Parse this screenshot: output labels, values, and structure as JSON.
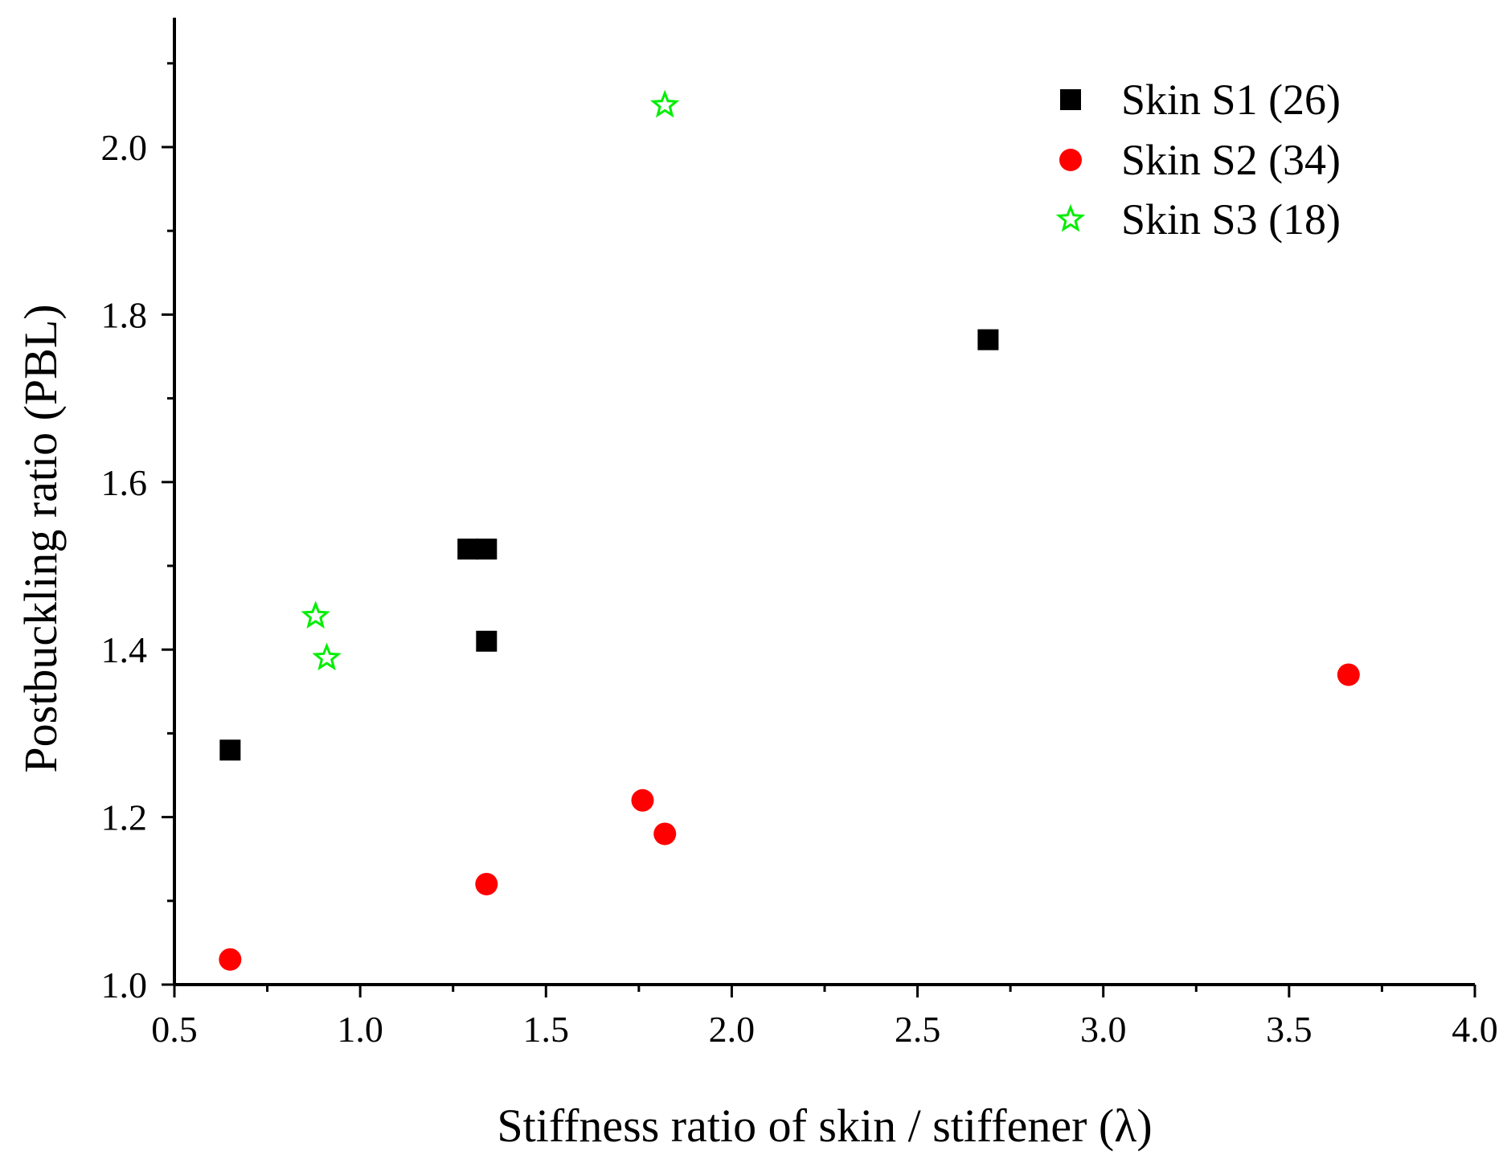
{
  "chart_data": {
    "type": "scatter",
    "title": "",
    "xlabel": "Stiffness ratio of skin / stiffener (λ)",
    "ylabel": "Postbuckling ratio (PBL)",
    "xlim": [
      0.5,
      4.0
    ],
    "ylim": [
      1.0,
      2.15
    ],
    "xticks": [
      0.5,
      1.0,
      1.5,
      2.0,
      2.5,
      3.0,
      3.5,
      4.0
    ],
    "xtick_labels": [
      "0.5",
      "1.0",
      "1.5",
      "2.0",
      "2.5",
      "3.0",
      "3.5",
      "4.0"
    ],
    "yticks": [
      1.0,
      1.2,
      1.4,
      1.6,
      1.8,
      2.0
    ],
    "ytick_labels": [
      "1.0",
      "1.2",
      "1.4",
      "1.6",
      "1.8",
      "2.0"
    ],
    "grid": false,
    "legend_position": "top-right",
    "series": [
      {
        "name": "Skin S1 (26)",
        "marker": "square",
        "color": "#000000",
        "points": [
          {
            "x": 0.65,
            "y": 1.28
          },
          {
            "x": 1.29,
            "y": 1.52
          },
          {
            "x": 1.34,
            "y": 1.52
          },
          {
            "x": 1.34,
            "y": 1.41
          },
          {
            "x": 2.69,
            "y": 1.77
          }
        ]
      },
      {
        "name": "Skin S2 (34)",
        "marker": "circle",
        "color": "#ff0000",
        "points": [
          {
            "x": 0.65,
            "y": 1.03
          },
          {
            "x": 1.34,
            "y": 1.12
          },
          {
            "x": 1.76,
            "y": 1.22
          },
          {
            "x": 1.82,
            "y": 1.18
          },
          {
            "x": 3.66,
            "y": 1.37
          }
        ]
      },
      {
        "name": "Skin S3 (18)",
        "marker": "star-open",
        "color": "#00ee00",
        "points": [
          {
            "x": 0.88,
            "y": 1.44
          },
          {
            "x": 0.91,
            "y": 1.39
          },
          {
            "x": 1.82,
            "y": 2.05
          }
        ]
      }
    ]
  }
}
